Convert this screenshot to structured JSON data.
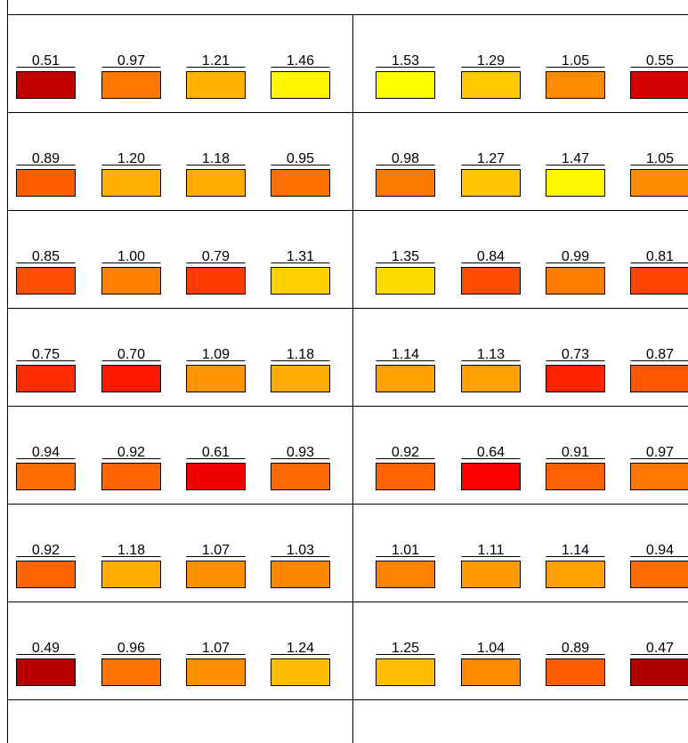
{
  "chart_data": {
    "type": "heatmap",
    "rows": [
      [
        0.51,
        0.97,
        1.21,
        1.46,
        1.53,
        1.29,
        1.05,
        0.55
      ],
      [
        0.89,
        1.2,
        1.18,
        0.95,
        0.98,
        1.27,
        1.47,
        1.05
      ],
      [
        0.85,
        1.0,
        0.79,
        1.31,
        1.35,
        0.84,
        0.99,
        0.81
      ],
      [
        0.75,
        0.7,
        1.09,
        1.18,
        1.14,
        1.13,
        0.73,
        0.87
      ],
      [
        0.94,
        0.92,
        0.61,
        0.93,
        0.92,
        0.64,
        0.91,
        0.97
      ],
      [
        0.92,
        1.18,
        1.07,
        1.03,
        1.01,
        1.11,
        1.14,
        0.94
      ],
      [
        0.49,
        0.96,
        1.07,
        1.24,
        1.25,
        1.04,
        0.89,
        0.47
      ]
    ],
    "value_labels": [
      [
        "0.51",
        "0.97",
        "1.21",
        "1.46",
        "1.53",
        "1.29",
        "1.05",
        "0.55"
      ],
      [
        "0.89",
        "1.20",
        "1.18",
        "0.95",
        "0.98",
        "1.27",
        "1.47",
        "1.05"
      ],
      [
        "0.85",
        "1.00",
        "0.79",
        "1.31",
        "1.35",
        "0.84",
        "0.99",
        "0.81"
      ],
      [
        "0.75",
        "0.70",
        "1.09",
        "1.18",
        "1.14",
        "1.13",
        "0.73",
        "0.87"
      ],
      [
        "0.94",
        "0.92",
        "0.61",
        "0.93",
        "0.92",
        "0.64",
        "0.91",
        "0.97"
      ],
      [
        "0.92",
        "1.18",
        "1.07",
        "1.03",
        "1.01",
        "1.11",
        "1.14",
        "0.94"
      ],
      [
        "0.49",
        "0.96",
        "1.07",
        "1.24",
        "1.25",
        "1.04",
        "0.89",
        "0.47"
      ]
    ],
    "color_stops": [
      {
        "value": 0.47,
        "color": "#b00000"
      },
      {
        "value": 0.64,
        "color": "#ff0000"
      },
      {
        "value": 0.8,
        "color": "#ff4000"
      },
      {
        "value": 1.0,
        "color": "#ff8000"
      },
      {
        "value": 1.2,
        "color": "#ffb000"
      },
      {
        "value": 1.35,
        "color": "#ffdc00"
      },
      {
        "value": 1.5,
        "color": "#ffff00"
      }
    ]
  }
}
